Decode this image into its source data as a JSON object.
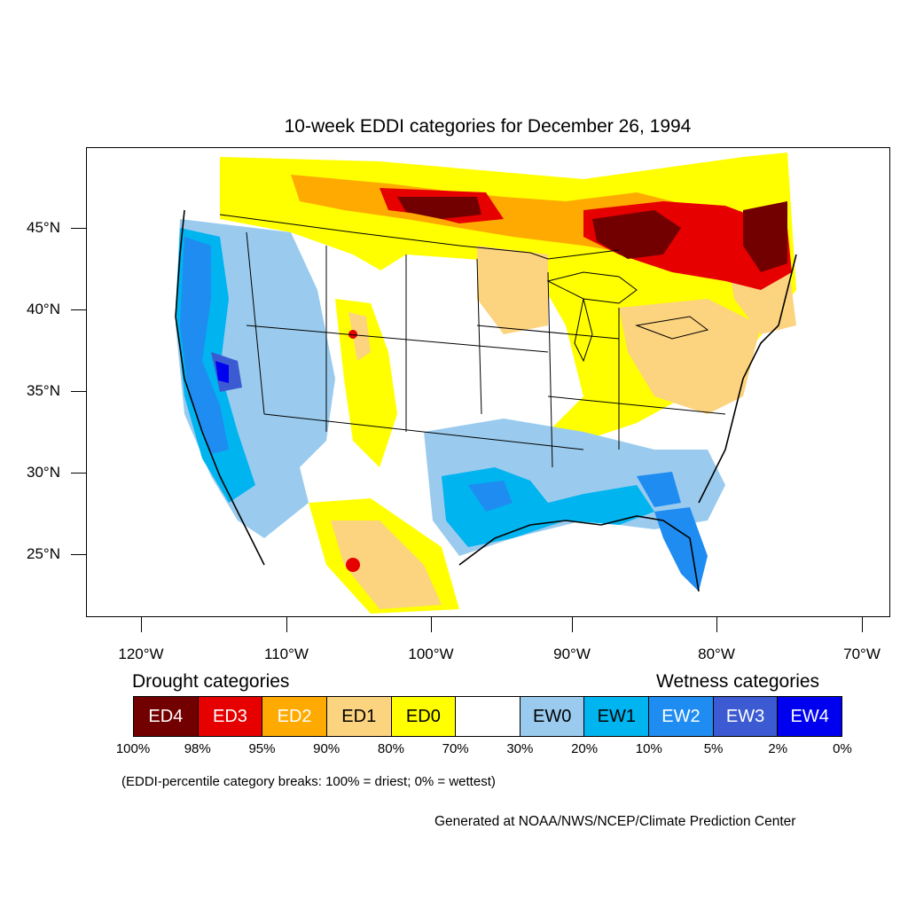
{
  "title": "10-week EDDI categories for December 26, 1994",
  "map": {
    "lat_labels": [
      "45°N",
      "40°N",
      "35°N",
      "30°N",
      "25°N"
    ],
    "lon_labels": [
      "120°W",
      "110°W",
      "100°W",
      "90°W",
      "80°W",
      "70°W"
    ]
  },
  "legend": {
    "drought_heading": "Drought categories",
    "wetness_heading": "Wetness categories",
    "categories": [
      {
        "label": "ED4",
        "color": "#730000",
        "text_color": "#ffffff"
      },
      {
        "label": "ED3",
        "color": "#e60000",
        "text_color": "#ffffff"
      },
      {
        "label": "ED2",
        "color": "#ffaa00",
        "text_color": "#ffffff"
      },
      {
        "label": "ED1",
        "color": "#fcd37f",
        "text_color": "#000000"
      },
      {
        "label": "ED0",
        "color": "#ffff00",
        "text_color": "#000000"
      },
      {
        "label": "",
        "color": "#ffffff",
        "text_color": "#000000"
      },
      {
        "label": "EW0",
        "color": "#9acbee",
        "text_color": "#000000"
      },
      {
        "label": "EW1",
        "color": "#00b4f0",
        "text_color": "#000000"
      },
      {
        "label": "EW2",
        "color": "#1e8cf0",
        "text_color": "#ffffff"
      },
      {
        "label": "EW3",
        "color": "#3c5ad2",
        "text_color": "#ffffff"
      },
      {
        "label": "EW4",
        "color": "#0000f0",
        "text_color": "#ffffff"
      }
    ],
    "breaks": [
      "100%",
      "98%",
      "95%",
      "90%",
      "80%",
      "70%",
      "30%",
      "20%",
      "10%",
      "5%",
      "2%",
      "0%"
    ]
  },
  "note": "(EDDI-percentile category breaks: 100% = driest; 0% = wettest)",
  "credit": "Generated at NOAA/NWS/NCEP/Climate Prediction Center"
}
